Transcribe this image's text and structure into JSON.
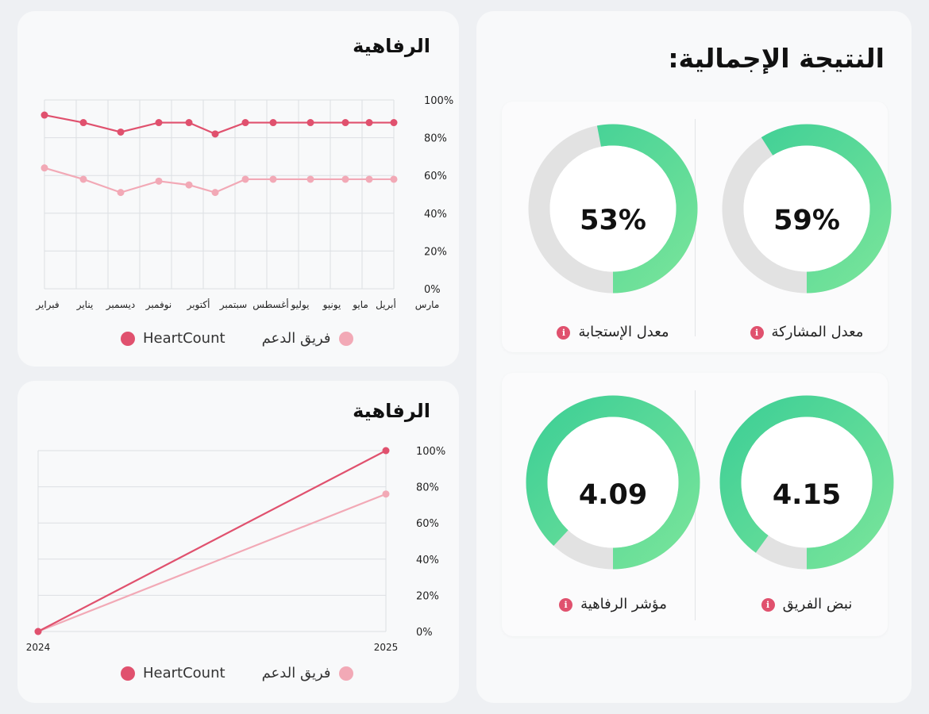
{
  "overall": {
    "title": "النتيجة الإجمالية:",
    "metrics": [
      {
        "label": "معدل المشاركة",
        "value": "59%",
        "fraction": 0.59,
        "ring": "partial"
      },
      {
        "label": "معدل الإستجابة",
        "value": "53%",
        "fraction": 0.53,
        "ring": "partial"
      },
      {
        "label": "نبض الفريق",
        "value": "4.15",
        "fraction": 0.9,
        "ring": "gradient"
      },
      {
        "label": "مؤشر الرفاهية",
        "value": "4.09",
        "fraction": 0.88,
        "ring": "gradient"
      }
    ],
    "info_glyph": "i"
  },
  "colors": {
    "heartcount": "#e0516e",
    "team": "#f2a9b6",
    "ring_green": "#3ecf96",
    "ring_green_light": "#78e49a",
    "ring_track": "#e2e2e2"
  },
  "chart_data": [
    {
      "type": "line",
      "title": "الرفاهية",
      "categories": [
        "مارس",
        "أبريل",
        "مايو",
        "يونيو",
        "يوليو",
        "أغسطس",
        "سبتمبر",
        "أكتوبر",
        "نوفمبر",
        "ديسمبر",
        "يناير",
        "فبراير"
      ],
      "series": [
        {
          "name": "HeartCount",
          "values": [
            88,
            88,
            88,
            88,
            88,
            88,
            82,
            88,
            88,
            83,
            88,
            92
          ]
        },
        {
          "name": "فريق الدعم",
          "values": [
            58,
            58,
            58,
            58,
            58,
            58,
            51,
            55,
            57,
            51,
            58,
            64
          ]
        }
      ],
      "ylim": [
        0,
        100
      ],
      "yticks": [
        "100%",
        "80%",
        "60%",
        "40%",
        "20%",
        "0%"
      ],
      "grid": true,
      "legend": "bottom"
    },
    {
      "type": "line",
      "title": "الرفاهية",
      "categories": [
        "2024",
        "2025"
      ],
      "series": [
        {
          "name": "HeartCount",
          "values": [
            0,
            100
          ]
        },
        {
          "name": "فريق الدعم",
          "values": [
            0,
            76
          ]
        }
      ],
      "ylim": [
        0,
        100
      ],
      "yticks": [
        "100%",
        "80%",
        "60%",
        "40%",
        "20%",
        "0%"
      ],
      "grid": true,
      "legend": "bottom"
    }
  ]
}
